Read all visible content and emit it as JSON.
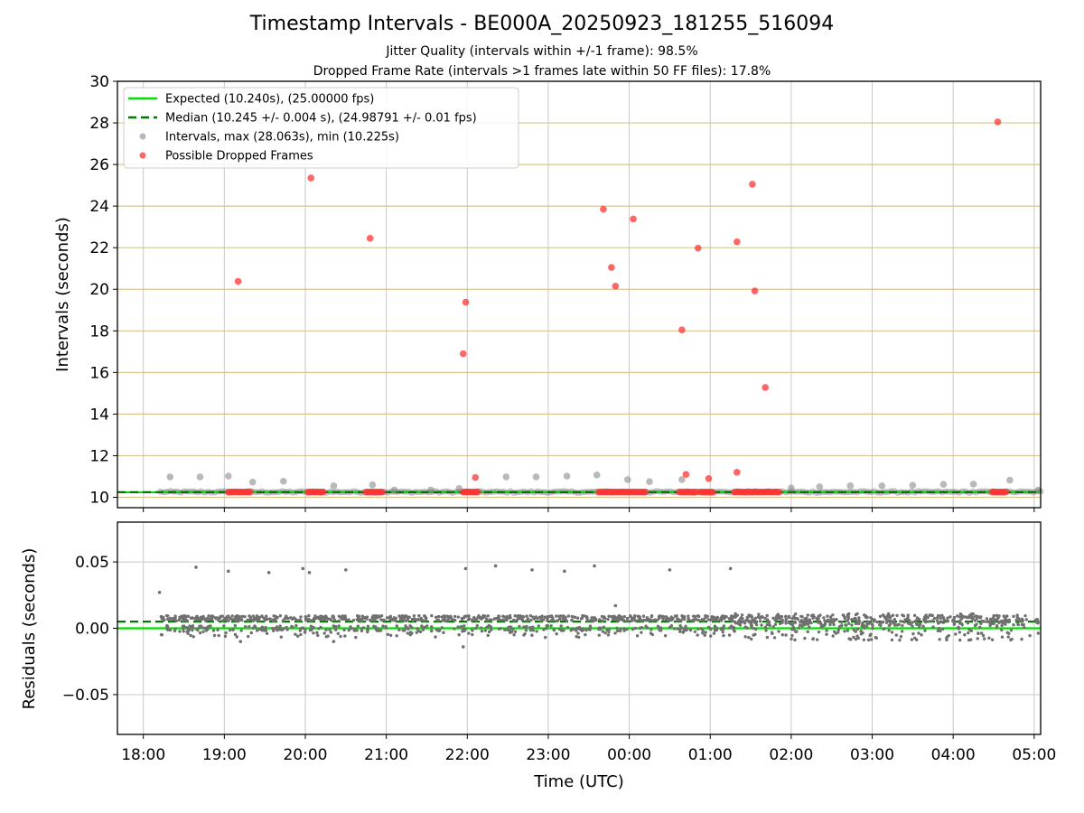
{
  "figure": {
    "title": "Timestamp Intervals - BE000A_20250923_181255_516094",
    "subtitle_jitter": "Jitter Quality (intervals within +/-1 frame): 98.5%",
    "subtitle_dropped": "Dropped Frame Rate (intervals >1 frames late within 50 FF files): 17.8%"
  },
  "colors": {
    "expected": "#00dd00",
    "median": "#007700",
    "interval": "#808080",
    "dropped": "#ff3333",
    "hgrid_top": "#d6c48c",
    "grid": "#c8c8c8",
    "band": "#4f8f4f"
  },
  "chart_data": [
    {
      "type": "scatter",
      "panel": "intervals",
      "xlabel": "Time (UTC)",
      "ylabel": "Intervals (seconds)",
      "xlim": [
        17.68,
        29.08
      ],
      "ylim": [
        9.5,
        30
      ],
      "yticks": [
        10,
        12,
        14,
        16,
        18,
        20,
        22,
        24,
        26,
        28,
        30
      ],
      "xticks": [
        {
          "x": 18,
          "label": "18:00"
        },
        {
          "x": 19,
          "label": "19:00"
        },
        {
          "x": 20,
          "label": "20:00"
        },
        {
          "x": 21,
          "label": "21:00"
        },
        {
          "x": 22,
          "label": "22:00"
        },
        {
          "x": 23,
          "label": "23:00"
        },
        {
          "x": 24,
          "label": "00:00"
        },
        {
          "x": 25,
          "label": "01:00"
        },
        {
          "x": 26,
          "label": "02:00"
        },
        {
          "x": 27,
          "label": "03:00"
        },
        {
          "x": 28,
          "label": "04:00"
        },
        {
          "x": 29,
          "label": "05:00"
        }
      ],
      "grid": "horizontal and vertical",
      "legend_position": "top-left",
      "expected_interval": 10.24,
      "median_interval": 10.245,
      "data_range": [
        18.21,
        29.08
      ],
      "legend": [
        {
          "kind": "line-solid",
          "label": "Expected (10.240s), (25.00000 fps)"
        },
        {
          "kind": "line-dashed",
          "label": "Median (10.245 +/- 0.004 s), (24.98791 +/- 0.01 fps)"
        },
        {
          "kind": "dot-gray",
          "label": "Intervals, max (28.063s), min (10.225s)"
        },
        {
          "kind": "dot-red",
          "label": "Possible Dropped Frames"
        }
      ],
      "intervals_outliers": [
        [
          18.33,
          10.98
        ],
        [
          18.7,
          10.98
        ],
        [
          19.05,
          11.02
        ],
        [
          19.35,
          10.73
        ],
        [
          19.73,
          10.77
        ],
        [
          20.35,
          10.55
        ],
        [
          20.83,
          10.6
        ],
        [
          21.1,
          10.35
        ],
        [
          21.55,
          10.35
        ],
        [
          21.9,
          10.42
        ],
        [
          22.48,
          10.98
        ],
        [
          22.85,
          10.98
        ],
        [
          23.23,
          11.02
        ],
        [
          23.6,
          11.07
        ],
        [
          23.98,
          10.85
        ],
        [
          24.25,
          10.75
        ],
        [
          24.65,
          10.85
        ],
        [
          26.0,
          10.45
        ],
        [
          26.35,
          10.5
        ],
        [
          26.73,
          10.55
        ],
        [
          27.12,
          10.55
        ],
        [
          27.5,
          10.58
        ],
        [
          27.88,
          10.62
        ],
        [
          28.25,
          10.63
        ],
        [
          28.7,
          10.82
        ],
        [
          29.05,
          10.35
        ]
      ],
      "dropped_frames": [
        [
          19.17,
          20.38
        ],
        [
          20.07,
          25.35
        ],
        [
          20.8,
          22.45
        ],
        [
          21.95,
          16.9
        ],
        [
          21.98,
          19.38
        ],
        [
          22.1,
          10.95
        ],
        [
          23.68,
          23.85
        ],
        [
          23.78,
          21.05
        ],
        [
          23.83,
          20.15
        ],
        [
          24.05,
          23.38
        ],
        [
          24.65,
          18.05
        ],
        [
          24.7,
          11.1
        ],
        [
          24.85,
          21.98
        ],
        [
          24.98,
          10.9
        ],
        [
          25.33,
          22.28
        ],
        [
          25.33,
          11.2
        ],
        [
          25.52,
          25.05
        ],
        [
          25.55,
          19.92
        ],
        [
          25.68,
          15.28
        ],
        [
          28.55,
          28.05
        ]
      ],
      "dropped_clusters": [
        [
          19.05,
          19.32
        ],
        [
          20.03,
          20.22
        ],
        [
          20.75,
          20.95
        ],
        [
          21.95,
          22.13
        ],
        [
          23.62,
          24.2
        ],
        [
          24.62,
          24.83
        ],
        [
          24.88,
          25.03
        ],
        [
          25.3,
          25.5
        ],
        [
          25.52,
          25.85
        ],
        [
          28.48,
          28.65
        ]
      ]
    },
    {
      "type": "scatter",
      "panel": "residuals",
      "xlabel": "Time (UTC)",
      "ylabel": "Residuals (seconds)",
      "xlim": [
        17.68,
        29.08
      ],
      "ylim": [
        -0.08,
        0.08
      ],
      "yticks": [
        {
          "y": 0.05,
          "label": "0.05"
        },
        {
          "y": 0.0,
          "label": "0.00"
        },
        {
          "y": -0.05,
          "label": "−0.05"
        }
      ],
      "grid": "horizontal and vertical",
      "expected_residual": 0.0,
      "median_residual": 0.005,
      "outliers": [
        [
          18.2,
          0.027
        ],
        [
          18.65,
          0.046
        ],
        [
          19.05,
          0.043
        ],
        [
          19.55,
          0.042
        ],
        [
          19.97,
          0.045
        ],
        [
          20.05,
          0.042
        ],
        [
          20.5,
          0.044
        ],
        [
          21.98,
          0.045
        ],
        [
          22.35,
          0.047
        ],
        [
          22.8,
          0.044
        ],
        [
          23.2,
          0.043
        ],
        [
          23.57,
          0.047
        ],
        [
          24.5,
          0.044
        ],
        [
          25.25,
          0.045
        ],
        [
          23.83,
          0.017
        ],
        [
          21.95,
          -0.014
        ],
        [
          19.2,
          -0.01
        ],
        [
          20.35,
          -0.01
        ]
      ]
    }
  ]
}
